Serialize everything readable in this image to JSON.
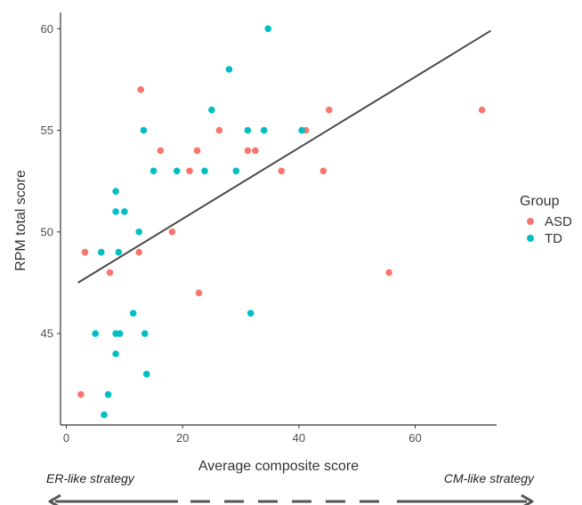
{
  "chart_data": {
    "type": "scatter",
    "xlabel": "Average composite score",
    "ylabel": "RPM total score",
    "xlim": [
      -1,
      74
    ],
    "ylim": [
      40.5,
      60.8
    ],
    "x_ticks": [
      0,
      20,
      40,
      60
    ],
    "y_ticks": [
      45,
      50,
      55,
      60
    ],
    "grid": false,
    "legend": {
      "title": "Group",
      "position": "right"
    },
    "series": [
      {
        "name": "ASD",
        "color": "#F8766D",
        "points": [
          [
            2.5,
            42
          ],
          [
            3.2,
            49
          ],
          [
            7.5,
            48
          ],
          [
            12.5,
            49
          ],
          [
            12.8,
            57
          ],
          [
            16.2,
            54
          ],
          [
            18.2,
            50
          ],
          [
            21.2,
            53
          ],
          [
            22.5,
            54
          ],
          [
            22.8,
            47
          ],
          [
            26.3,
            55
          ],
          [
            31.2,
            54
          ],
          [
            32.5,
            54
          ],
          [
            37.0,
            53
          ],
          [
            41.2,
            55
          ],
          [
            44.2,
            53
          ],
          [
            45.2,
            56
          ],
          [
            55.5,
            48
          ],
          [
            71.5,
            56
          ]
        ]
      },
      {
        "name": "TD",
        "color": "#00BFC4",
        "points": [
          [
            5.0,
            45
          ],
          [
            6.0,
            49
          ],
          [
            6.5,
            41
          ],
          [
            7.2,
            42
          ],
          [
            8.5,
            52
          ],
          [
            8.5,
            51
          ],
          [
            8.5,
            44
          ],
          [
            8.5,
            45
          ],
          [
            9.2,
            45
          ],
          [
            9.0,
            49
          ],
          [
            10.0,
            51
          ],
          [
            11.5,
            46
          ],
          [
            12.5,
            50
          ],
          [
            13.3,
            55
          ],
          [
            13.5,
            45
          ],
          [
            13.8,
            43
          ],
          [
            15.0,
            53
          ],
          [
            19.0,
            53
          ],
          [
            23.8,
            53
          ],
          [
            25.0,
            56
          ],
          [
            28.0,
            58
          ],
          [
            29.2,
            53
          ],
          [
            31.2,
            55
          ],
          [
            31.7,
            46
          ],
          [
            34.0,
            55
          ],
          [
            34.7,
            60
          ],
          [
            40.5,
            55
          ]
        ]
      }
    ],
    "trend_line": {
      "x": [
        2.0,
        73.0
      ],
      "y": [
        47.5,
        59.9
      ]
    },
    "annotations": {
      "left": "ER-like strategy",
      "right": "CM-like strategy"
    }
  }
}
